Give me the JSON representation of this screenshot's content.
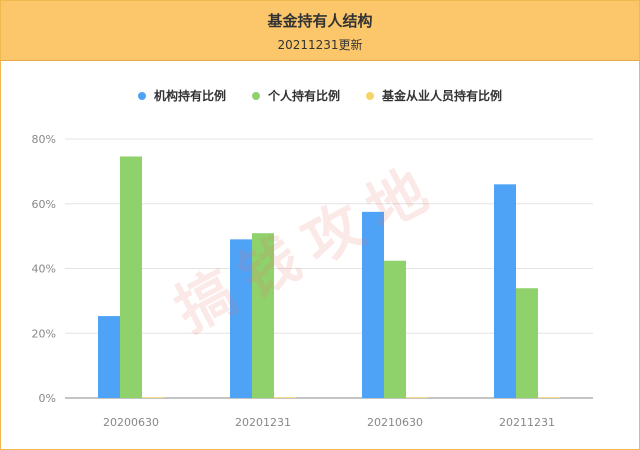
{
  "header": {
    "title": "基金持有人结构",
    "subtitle": "20211231更新"
  },
  "watermark": "搞钱攻地",
  "colors": {
    "header_bg": "#fcc76b",
    "institutional": "#4fa3f7",
    "individual": "#8fd16b",
    "employee": "#f7d36b"
  },
  "chart_data": {
    "type": "bar",
    "categories": [
      "20200630",
      "20201231",
      "20210630",
      "20211231"
    ],
    "series": [
      {
        "name": "机构持有比例",
        "color": "#4fa3f7",
        "values": [
          25.3,
          49.0,
          57.5,
          66.0
        ]
      },
      {
        "name": "个人持有比例",
        "color": "#8fd16b",
        "values": [
          74.6,
          50.9,
          42.4,
          33.9
        ]
      },
      {
        "name": "基金从业人员持有比例",
        "color": "#f7d36b",
        "values": [
          0.1,
          0.1,
          0.1,
          0.1
        ]
      }
    ],
    "yticks": [
      "0%",
      "20%",
      "40%",
      "60%",
      "80%"
    ],
    "ylim": [
      0,
      80
    ],
    "grid": true,
    "legend": "top-center"
  }
}
